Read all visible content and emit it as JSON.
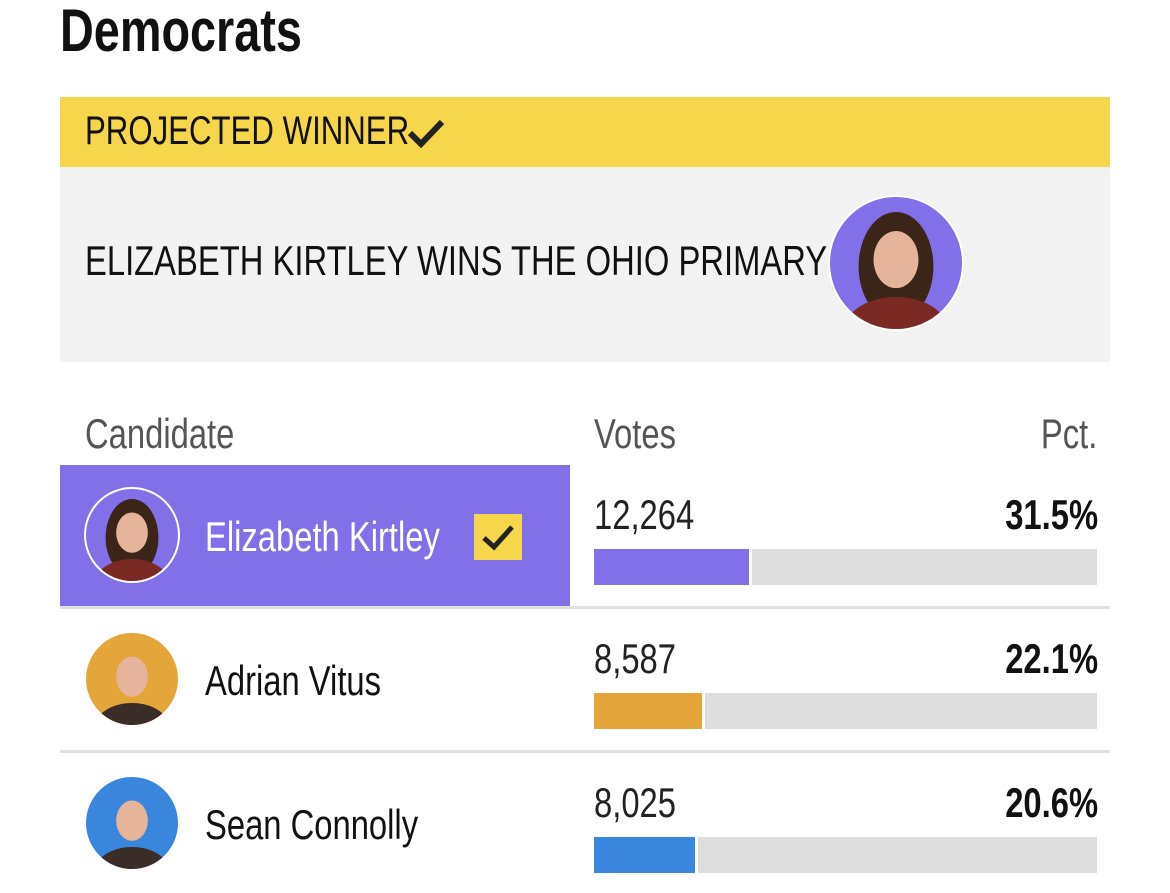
{
  "heading": "Democrats",
  "banner": {
    "label": "PROJECTED WINNER",
    "headline": "ELIZABETH KIRTLEY WINS THE OHIO PRIMARY",
    "avatar_color": "#8270e8"
  },
  "table": {
    "columns": [
      "Candidate",
      "Votes",
      "Pct."
    ],
    "rows": [
      {
        "name": "Elizabeth Kirtley",
        "votes": "12,264",
        "pct": 31.5,
        "pct_label": "31.5%",
        "color": "#8270e8",
        "winner": true
      },
      {
        "name": "Adrian Vitus",
        "votes": "8,587",
        "pct": 22.1,
        "pct_label": "22.1%",
        "color": "#e4a63a",
        "winner": false
      },
      {
        "name": "Sean Connolly",
        "votes": "8,025",
        "pct": 20.6,
        "pct_label": "20.6%",
        "color": "#3b86dd",
        "winner": false
      }
    ]
  }
}
